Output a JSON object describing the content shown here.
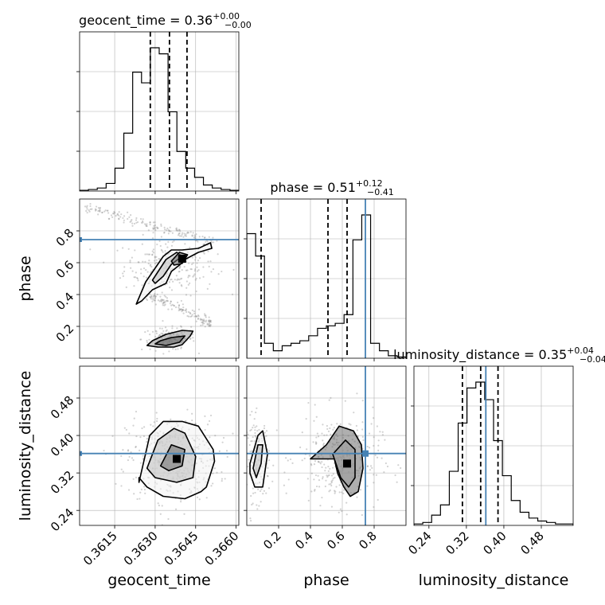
{
  "chart_data": {
    "type": "corner",
    "colors": {
      "truth": "#4682b4",
      "hist": "#000000",
      "grid": "#b0b0b0",
      "points": "#7f7f7f"
    },
    "parameters": [
      {
        "key": "geocent_time",
        "label": "geocent_time",
        "title_main": "geocent_time = 0.36",
        "title_plus": "+0.00",
        "title_minus": "−0.00",
        "range": [
          0.3602,
          0.3661
        ],
        "ticks": [
          "0.3615",
          "0.3630",
          "0.3645",
          "0.3660"
        ],
        "tick_values": [
          0.3615,
          0.363,
          0.3645,
          0.366
        ],
        "quantiles": [
          0.36282,
          0.36353,
          0.36418
        ]
      },
      {
        "key": "phase",
        "label": "phase",
        "title_main": "phase = 0.51",
        "title_plus": "+0.12",
        "title_minus": "−0.41",
        "range": [
          0.0,
          1.0
        ],
        "ticks": [
          "0.2",
          "0.4",
          "0.6",
          "0.8"
        ],
        "tick_values": [
          0.2,
          0.4,
          0.6,
          0.8
        ],
        "quantiles": [
          0.09,
          0.51,
          0.63
        ],
        "truth": 0.745
      },
      {
        "key": "luminosity_distance",
        "label": "luminosity_distance",
        "title_main": "luminosity_distance = 0.35",
        "title_plus": "+0.04",
        "title_minus": "−0.04",
        "range": [
          0.208,
          0.548
        ],
        "ticks": [
          "0.24",
          "0.32",
          "0.40",
          "0.48"
        ],
        "tick_values": [
          0.24,
          0.32,
          0.4,
          0.48
        ],
        "quantiles": [
          0.3115,
          0.3505,
          0.3875
        ],
        "truth": 0.3615
      }
    ],
    "histograms": {
      "geocent_time": [
        0.5,
        1,
        2,
        5,
        15,
        38,
        78,
        71,
        94,
        90,
        52,
        26,
        15,
        9,
        4,
        2,
        1,
        0.5
      ],
      "phase": [
        100,
        82,
        12,
        6,
        10,
        12,
        14,
        18,
        24,
        26,
        28,
        35,
        95,
        115,
        12,
        6,
        2,
        1
      ],
      "luminosity_distance": [
        1,
        2,
        7,
        14,
        37,
        70,
        94,
        98,
        86,
        58,
        34,
        17,
        9,
        5,
        3,
        2,
        1,
        1
      ]
    },
    "contours": {
      "phase_vs_geocent_time": [
        {
          "x": [
            0.36245,
            0.36265,
            0.3633,
            0.3636,
            0.364,
            0.3646,
            0.36505,
            0.3651,
            0.3646,
            0.3641,
            0.3639,
            0.3636,
            0.3634,
            0.3629,
            0.3625,
            0.3623
          ],
          "y": [
            0.4,
            0.48,
            0.64,
            0.68,
            0.68,
            0.69,
            0.725,
            0.69,
            0.665,
            0.62,
            0.585,
            0.545,
            0.47,
            0.43,
            0.36,
            0.34
          ]
        },
        {
          "x": [
            0.3629,
            0.3634,
            0.3638,
            0.364,
            0.3636,
            0.3633,
            0.363
          ],
          "y": [
            0.49,
            0.62,
            0.665,
            0.64,
            0.59,
            0.515,
            0.47
          ]
        },
        {
          "x": [
            0.3636,
            0.3639,
            0.3642,
            0.364,
            0.3637
          ],
          "y": [
            0.61,
            0.665,
            0.65,
            0.595,
            0.585
          ]
        },
        {
          "x": [
            0.3627,
            0.3631,
            0.3637,
            0.364,
            0.3643,
            0.3644,
            0.364,
            0.3634,
            0.3629
          ],
          "y": [
            0.08,
            0.07,
            0.07,
            0.085,
            0.14,
            0.17,
            0.175,
            0.15,
            0.11
          ]
        },
        {
          "x": [
            0.363,
            0.3634,
            0.3639,
            0.3641,
            0.3636,
            0.3632
          ],
          "y": [
            0.09,
            0.08,
            0.1,
            0.14,
            0.13,
            0.11
          ]
        }
      ],
      "luminosity_distance_vs_geocent_time": [
        {
          "x": [
            0.3624,
            0.3628,
            0.3633,
            0.364,
            0.3646,
            0.36515,
            0.3652,
            0.3649,
            0.3647,
            0.3641,
            0.3633,
            0.3627,
            0.3624
          ],
          "y": [
            0.3,
            0.4,
            0.43,
            0.43,
            0.42,
            0.37,
            0.345,
            0.29,
            0.28,
            0.265,
            0.27,
            0.29,
            0.31
          ]
        },
        {
          "x": [
            0.3627,
            0.3631,
            0.3637,
            0.3641,
            0.3645,
            0.3644,
            0.3638,
            0.363
          ],
          "y": [
            0.33,
            0.39,
            0.415,
            0.405,
            0.355,
            0.31,
            0.3,
            0.31
          ]
        },
        {
          "x": [
            0.3632,
            0.3636,
            0.3641,
            0.364,
            0.3635
          ],
          "y": [
            0.335,
            0.38,
            0.37,
            0.335,
            0.325
          ]
        }
      ],
      "luminosity_distance_vs_phase": [
        {
          "x": [
            0.02,
            0.07,
            0.1,
            0.13,
            0.1,
            0.05,
            0.02
          ],
          "y": [
            0.34,
            0.4,
            0.41,
            0.36,
            0.29,
            0.29,
            0.32
          ]
        },
        {
          "x": [
            0.04,
            0.07,
            0.1,
            0.09,
            0.06
          ],
          "y": [
            0.33,
            0.38,
            0.38,
            0.34,
            0.31
          ]
        },
        {
          "x": [
            0.4,
            0.5,
            0.58,
            0.67,
            0.72,
            0.73,
            0.7,
            0.65,
            0.61,
            0.57,
            0.55,
            0.49,
            0.4
          ],
          "y": [
            0.35,
            0.38,
            0.42,
            0.41,
            0.38,
            0.33,
            0.28,
            0.27,
            0.29,
            0.32,
            0.35,
            0.35,
            0.35
          ]
        },
        {
          "x": [
            0.54,
            0.62,
            0.68,
            0.68,
            0.64,
            0.59,
            0.56
          ],
          "y": [
            0.36,
            0.39,
            0.37,
            0.31,
            0.29,
            0.31,
            0.34
          ]
        }
      ]
    },
    "peaks": {
      "phase_vs_geocent_time": [
        0.364,
        0.625
      ],
      "luminosity_distance_vs_geocent_time": [
        0.3638,
        0.35
      ],
      "luminosity_distance_vs_phase": [
        0.63,
        0.34
      ]
    }
  }
}
